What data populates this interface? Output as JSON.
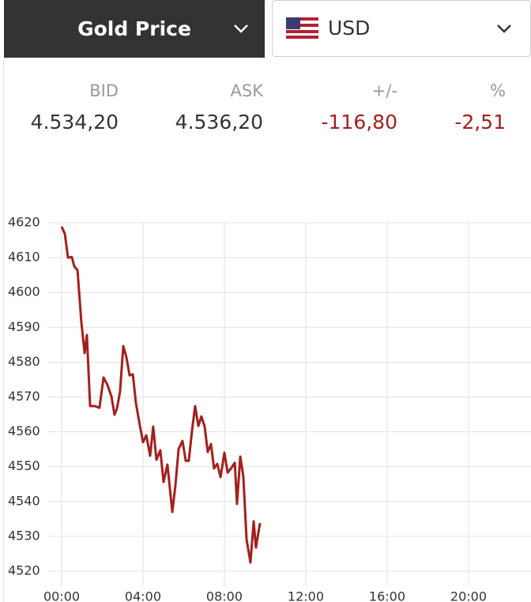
{
  "header": {
    "selector": "Gold Price",
    "currency": "USD"
  },
  "quote": {
    "labels": [
      "BID",
      "ASK",
      "+/-",
      "%"
    ],
    "values": [
      "4.534,20",
      "4.536,20",
      "-116,80",
      "-2,51"
    ]
  },
  "chart_data": {
    "type": "line",
    "x": [
      0,
      0.16,
      0.31,
      0.5,
      0.62,
      0.78,
      0.97,
      1.13,
      1.24,
      1.4,
      1.63,
      1.86,
      2.06,
      2.25,
      2.45,
      2.6,
      2.72,
      2.87,
      3.03,
      3.18,
      3.34,
      3.5,
      3.65,
      3.84,
      4.0,
      4.16,
      4.35,
      4.5,
      4.66,
      4.85,
      5.01,
      5.2,
      5.44,
      5.59,
      5.75,
      5.94,
      6.1,
      6.25,
      6.41,
      6.56,
      6.72,
      6.87,
      7.03,
      7.18,
      7.34,
      7.49,
      7.65,
      7.81,
      8.0,
      8.16,
      8.35,
      8.51,
      8.62,
      8.78,
      8.93,
      9.09,
      9.28,
      9.44,
      9.55,
      9.75
    ],
    "series": [
      {
        "color": "#a3201c",
        "values": [
          4618.9,
          4616.8,
          4610,
          4610.2,
          4607.5,
          4606.4,
          4591.4,
          4582.6,
          4587.8,
          4567.4,
          4567.4,
          4566.9,
          4575.6,
          4573.5,
          4570.1,
          4564.9,
          4566.7,
          4571.5,
          4584.6,
          4581.5,
          4576.2,
          4576.5,
          4568.3,
          4562,
          4557,
          4559,
          4553.1,
          4561.5,
          4552,
          4554.7,
          4545.6,
          4550.6,
          4537,
          4544.5,
          4555.1,
          4557.4,
          4551.7,
          4551.7,
          4560.4,
          4567.4,
          4561.7,
          4564.4,
          4561.5,
          4554.2,
          4556.5,
          4549.5,
          4550.8,
          4547,
          4554,
          4548.3,
          4549.7,
          4551.1,
          4539.3,
          4552.9,
          4547.2,
          4529.1,
          4522.5,
          4534.3,
          4526.8,
          4533.8
        ]
      }
    ],
    "xlim": [
      0,
      23.07
    ],
    "ylim": [
      4520,
      4620
    ],
    "xticks": [
      {
        "value": 0,
        "label": "00:00"
      },
      {
        "value": 4,
        "label": "04:00"
      },
      {
        "value": 8,
        "label": "08:00"
      },
      {
        "value": 12,
        "label": "12:00"
      },
      {
        "value": 16,
        "label": "16:00"
      },
      {
        "value": 20,
        "label": "20:00"
      }
    ],
    "yticks": [
      4520,
      4530,
      4540,
      4550,
      4560,
      4570,
      4580,
      4590,
      4600,
      4610,
      4620
    ],
    "grid": true
  }
}
